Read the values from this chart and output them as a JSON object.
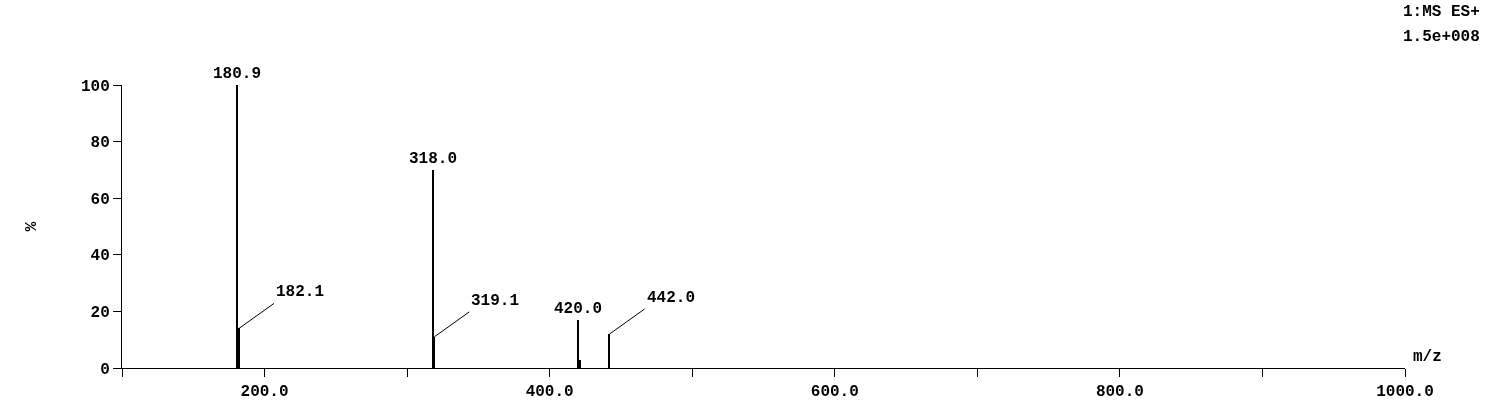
{
  "chart_data": {
    "type": "bar",
    "xlabel": "m/z",
    "ylabel": "%",
    "annotations": [
      "1:MS ES+",
      "1.5e+008",
      {
        "text": "180.9",
        "x": 180.9,
        "y": 100
      },
      {
        "text": "182.1",
        "x": 182.1,
        "y": 14
      },
      {
        "text": "318.0",
        "x": 318.0,
        "y": 70
      },
      {
        "text": "319.1",
        "x": 319.1,
        "y": 11
      },
      {
        "text": "420.0",
        "x": 420.0,
        "y": 17
      },
      {
        "text": "442.0",
        "x": 442.0,
        "y": 12
      }
    ],
    "x": [
      180.9,
      182.1,
      318.0,
      319.1,
      420.0,
      421.5,
      442.0
    ],
    "values": [
      100,
      14,
      70,
      11,
      17,
      3,
      12
    ],
    "color": "#000000",
    "xlim": [
      100,
      1000
    ],
    "xticks": [
      {
        "value": 100,
        "label": null
      },
      {
        "value": 200,
        "label": "200.0"
      },
      {
        "value": 300,
        "label": null
      },
      {
        "value": 400,
        "label": "400.0"
      },
      {
        "value": 500,
        "label": null
      },
      {
        "value": 600,
        "label": "600.0"
      },
      {
        "value": 700,
        "label": null
      },
      {
        "value": 800,
        "label": "800.0"
      },
      {
        "value": 900,
        "label": null
      },
      {
        "value": 1000,
        "label": "1000.0"
      }
    ],
    "ylim": [
      0,
      100
    ],
    "yticks": [
      0,
      20,
      40,
      60,
      80,
      100
    ],
    "grid": false
  }
}
